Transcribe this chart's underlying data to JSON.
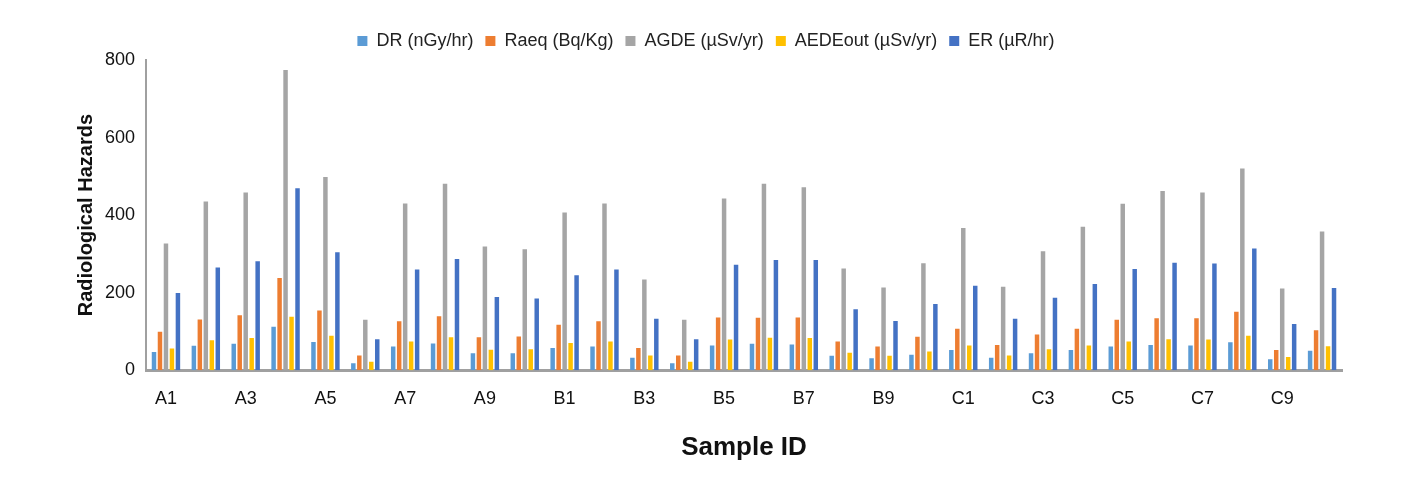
{
  "chart_data": {
    "type": "bar",
    "xlabel": "Sample ID",
    "ylabel": "Radiological Hazards",
    "categories": [
      "A1",
      null,
      "A3",
      null,
      "A5",
      null,
      "A7",
      null,
      "A9",
      null,
      "B1",
      null,
      "B3",
      null,
      "B5",
      null,
      "B7",
      null,
      "B9",
      null,
      "C1",
      null,
      "C3",
      null,
      "C5",
      null,
      "C7",
      null,
      "C9",
      null
    ],
    "series": [
      {
        "name": "DR (nGy/hr)",
        "color": "#5b9bd5",
        "values": [
          47,
          63,
          68,
          112,
          73,
          18,
          61,
          69,
          44,
          44,
          57,
          61,
          32,
          18,
          64,
          68,
          66,
          37,
          31,
          40,
          52,
          32,
          44,
          52,
          61,
          65,
          64,
          72,
          28,
          50
        ]
      },
      {
        "name": "Raeq (Bq/Kg)",
        "color": "#ed7d31",
        "values": [
          99,
          131,
          142,
          238,
          154,
          38,
          126,
          139,
          85,
          87,
          117,
          126,
          57,
          38,
          136,
          135,
          136,
          74,
          61,
          86,
          107,
          65,
          92,
          107,
          130,
          134,
          134,
          151,
          52,
          103
        ]
      },
      {
        "name": "AGDE (µSv/yr)",
        "color": "#a5a5a5",
        "values": [
          327,
          435,
          458,
          774,
          498,
          130,
          430,
          481,
          319,
          312,
          407,
          430,
          234,
          130,
          443,
          481,
          472,
          262,
          213,
          276,
          367,
          215,
          307,
          370,
          429,
          462,
          458,
          520,
          211,
          358
        ]
      },
      {
        "name": "AEDEout (µSv/yr)",
        "color": "#ffc000",
        "values": [
          56,
          77,
          83,
          138,
          89,
          22,
          74,
          85,
          53,
          54,
          70,
          74,
          38,
          22,
          79,
          84,
          83,
          45,
          37,
          48,
          64,
          38,
          54,
          64,
          74,
          80,
          79,
          89,
          34,
          62
        ]
      },
      {
        "name": "ER (µR/hr)",
        "color": "#4472c4",
        "values": [
          199,
          265,
          281,
          469,
          304,
          80,
          260,
          287,
          189,
          185,
          245,
          260,
          133,
          80,
          272,
          284,
          284,
          157,
          127,
          171,
          218,
          133,
          187,
          222,
          261,
          277,
          275,
          314,
          119,
          212
        ]
      }
    ],
    "ylim": [
      0,
      800
    ],
    "yticks": [
      0,
      200,
      400,
      600,
      800
    ],
    "grid": false,
    "legend": "top"
  }
}
